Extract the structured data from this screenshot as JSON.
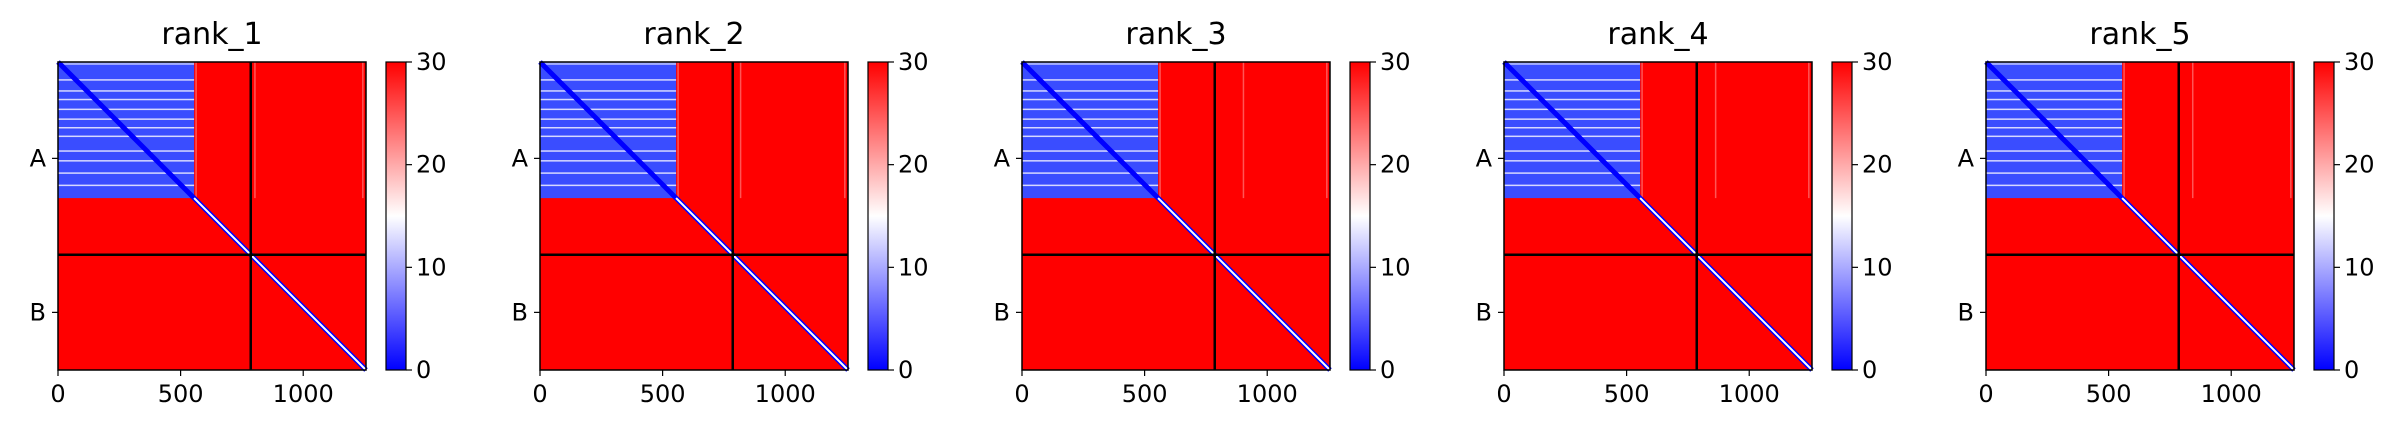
{
  "chart_data": [
    {
      "type": "heatmap",
      "title": "rank_1",
      "x_ticks": [
        0,
        500,
        1000
      ],
      "xlim": [
        0,
        1256
      ],
      "y_tick_labels": [
        "A",
        "B"
      ],
      "chain_boundary": 786,
      "chain_a_span": [
        0,
        786
      ],
      "chain_b_span": [
        786,
        1256
      ],
      "confident_block_end": 555,
      "colorbar": {
        "range": [
          0,
          30
        ],
        "ticks": [
          0,
          10,
          20,
          30
        ],
        "colormap": "bwr"
      },
      "faint_stripe_columns": [
        560,
        800,
        1240
      ],
      "gap_rows": [
        70,
        115,
        150,
        190,
        230,
        265,
        300,
        360,
        400,
        450,
        500
      ]
    },
    {
      "type": "heatmap",
      "title": "rank_2",
      "x_ticks": [
        0,
        500,
        1000
      ],
      "xlim": [
        0,
        1256
      ],
      "y_tick_labels": [
        "A",
        "B"
      ],
      "chain_boundary": 786,
      "chain_a_span": [
        0,
        786
      ],
      "chain_b_span": [
        786,
        1256
      ],
      "confident_block_end": 555,
      "colorbar": {
        "range": [
          0,
          30
        ],
        "ticks": [
          0,
          10,
          20,
          30
        ],
        "colormap": "bwr"
      },
      "faint_stripe_columns": [
        560,
        815,
        1240
      ],
      "gap_rows": [
        70,
        115,
        150,
        190,
        230,
        265,
        300,
        360,
        400,
        450,
        500
      ]
    },
    {
      "type": "heatmap",
      "title": "rank_3",
      "x_ticks": [
        0,
        500,
        1000
      ],
      "xlim": [
        0,
        1256
      ],
      "y_tick_labels": [
        "A",
        "B"
      ],
      "chain_boundary": 786,
      "chain_a_span": [
        0,
        786
      ],
      "chain_b_span": [
        786,
        1256
      ],
      "confident_block_end": 555,
      "colorbar": {
        "range": [
          0,
          30
        ],
        "ticks": [
          0,
          10,
          20,
          30
        ],
        "colormap": "bwr"
      },
      "faint_stripe_columns": [
        560,
        900,
        1240
      ],
      "gap_rows": [
        70,
        115,
        150,
        190,
        230,
        265,
        300,
        360,
        400,
        450,
        500
      ]
    },
    {
      "type": "heatmap",
      "title": "rank_4",
      "x_ticks": [
        0,
        500,
        1000
      ],
      "xlim": [
        0,
        1256
      ],
      "y_tick_labels": [
        "A",
        "B"
      ],
      "chain_boundary": 786,
      "chain_a_span": [
        0,
        786
      ],
      "chain_b_span": [
        786,
        1256
      ],
      "confident_block_end": 555,
      "colorbar": {
        "range": [
          0,
          30
        ],
        "ticks": [
          0,
          10,
          20,
          30
        ],
        "colormap": "bwr"
      },
      "faint_stripe_columns": [
        560,
        860,
        1240
      ],
      "gap_rows": [
        70,
        115,
        150,
        190,
        230,
        265,
        300,
        360,
        400,
        450,
        500
      ]
    },
    {
      "type": "heatmap",
      "title": "rank_5",
      "x_ticks": [
        0,
        500,
        1000
      ],
      "xlim": [
        0,
        1256
      ],
      "y_tick_labels": [
        "A",
        "B"
      ],
      "chain_boundary": 786,
      "chain_a_span": [
        0,
        786
      ],
      "chain_b_span": [
        786,
        1256
      ],
      "confident_block_end": 555,
      "colorbar": {
        "range": [
          0,
          30
        ],
        "ticks": [
          0,
          10,
          20,
          30
        ],
        "colormap": "bwr"
      },
      "faint_stripe_columns": [
        560,
        840,
        1240
      ],
      "gap_rows": [
        70,
        115,
        150,
        190,
        230,
        265,
        300,
        360,
        400,
        450,
        500
      ]
    }
  ],
  "colors": {
    "high": "#ff0000",
    "low": "#0000ff",
    "mid": "#ffffff",
    "confident_fill": "#3a4dff",
    "boundary_line": "#000000"
  }
}
